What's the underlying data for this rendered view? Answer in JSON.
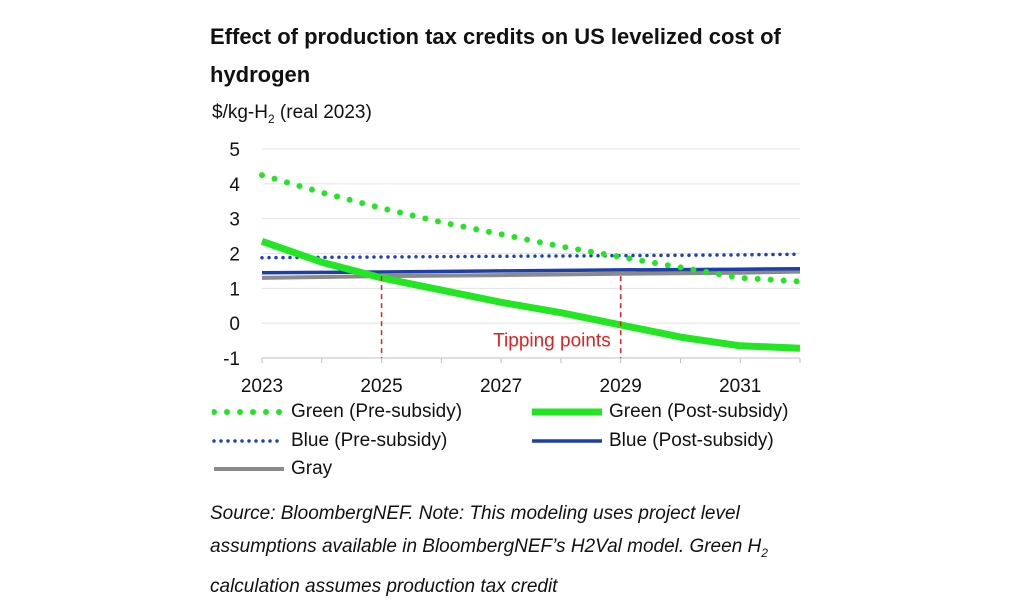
{
  "header": {
    "title": "Effect of production tax credits on US levelized cost of hydrogen",
    "unit_prefix": "$/kg-H",
    "unit_sub": "2",
    "unit_suffix": " (real 2023)"
  },
  "chart_data": {
    "type": "line",
    "title": "Effect of production tax credits on US levelized cost of hydrogen",
    "ylabel": "$/kg-H2 (real 2023)",
    "xlabel": "",
    "xlim": [
      2023,
      2032
    ],
    "ylim": [
      -1,
      5
    ],
    "x_ticks": [
      "2023",
      "2025",
      "2027",
      "2029",
      "2031"
    ],
    "y_ticks": [
      "5",
      "4",
      "3",
      "2",
      "1",
      "0",
      "-1"
    ],
    "grid": true,
    "series": [
      {
        "name": "Green (Pre-subsidy)",
        "color": "#22e622",
        "style": "dotted",
        "x": [
          2023,
          2024,
          2025,
          2026,
          2027,
          2028,
          2029,
          2030,
          2031,
          2032
        ],
        "y": [
          4.25,
          3.75,
          3.3,
          2.9,
          2.55,
          2.2,
          1.9,
          1.6,
          1.3,
          1.2
        ]
      },
      {
        "name": "Green (Post-subsidy)",
        "color": "#22e622",
        "style": "solid-thick",
        "x": [
          2023,
          2024,
          2025,
          2026,
          2027,
          2028,
          2029,
          2030,
          2031,
          2032
        ],
        "y": [
          2.35,
          1.75,
          1.3,
          0.95,
          0.6,
          0.3,
          -0.05,
          -0.4,
          -0.65,
          -0.72
        ]
      },
      {
        "name": "Blue (Pre-subsidy)",
        "color": "#1f3fbf",
        "style": "dotted",
        "x": [
          2023,
          2025,
          2027,
          2029,
          2031,
          2032
        ],
        "y": [
          1.88,
          1.9,
          1.92,
          1.94,
          1.96,
          1.98
        ]
      },
      {
        "name": "Blue (Post-subsidy)",
        "color": "#1f3fa8",
        "style": "solid",
        "x": [
          2023,
          2025,
          2027,
          2029,
          2031,
          2032
        ],
        "y": [
          1.45,
          1.47,
          1.5,
          1.53,
          1.55,
          1.56
        ]
      },
      {
        "name": "Gray",
        "color": "#8a8a8a",
        "style": "solid",
        "x": [
          2023,
          2025,
          2027,
          2029,
          2031,
          2032
        ],
        "y": [
          1.3,
          1.35,
          1.38,
          1.42,
          1.45,
          1.48
        ]
      }
    ],
    "annotations": [
      {
        "text": "Tipping points",
        "x": 2027.85,
        "y": -0.5,
        "color": "#e02020"
      },
      {
        "type": "vline",
        "x": 2025,
        "style": "dashed",
        "color": "#e02020"
      },
      {
        "type": "vline",
        "x": 2029,
        "style": "dashed",
        "color": "#e02020"
      }
    ],
    "legend": "bottom"
  },
  "legend": [
    {
      "label": "Green (Pre-subsidy)",
      "color": "#22e622",
      "style": "dotted"
    },
    {
      "label": "Green (Post-subsidy)",
      "color": "#22e622",
      "style": "solid-thick"
    },
    {
      "label": "Blue (Pre-subsidy)",
      "color": "#1f3fbf",
      "style": "dotted"
    },
    {
      "label": "Blue (Post-subsidy)",
      "color": "#1f3fa8",
      "style": "solid"
    },
    {
      "label": "Gray",
      "color": "#8a8a8a",
      "style": "solid"
    }
  ],
  "source": {
    "part1": "Source: BloombergNEF. Note: This modeling uses project level assumptions available in BloombergNEF’s H2Val model. Green H",
    "sub": "2",
    "part2": " calculation assumes production tax credit"
  }
}
